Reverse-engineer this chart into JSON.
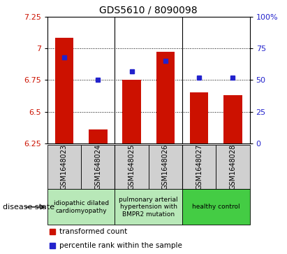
{
  "title": "GDS5610 / 8090098",
  "samples": [
    "GSM1648023",
    "GSM1648024",
    "GSM1648025",
    "GSM1648026",
    "GSM1648027",
    "GSM1648028"
  ],
  "bar_values": [
    7.08,
    6.36,
    6.75,
    6.97,
    6.65,
    6.63
  ],
  "percentile_values": [
    68,
    50,
    57,
    65,
    52,
    52
  ],
  "bar_color": "#cc1100",
  "dot_color": "#2222cc",
  "ylim_left": [
    6.25,
    7.25
  ],
  "ylim_right": [
    0,
    100
  ],
  "yticks_left": [
    6.25,
    6.5,
    6.75,
    7.0,
    7.25
  ],
  "ytick_labels_left": [
    "6.25",
    "6.5",
    "6.75",
    "7",
    "7.25"
  ],
  "yticks_right": [
    0,
    25,
    50,
    75,
    100
  ],
  "ytick_labels_right": [
    "0",
    "25",
    "50",
    "75",
    "100%"
  ],
  "grid_values": [
    6.5,
    6.75,
    7.0
  ],
  "disease_groups": [
    {
      "label": "idiopathic dilated\ncardiomyopathy",
      "x_range": [
        -0.5,
        1.5
      ],
      "color": "#b8e8b8"
    },
    {
      "label": "pulmonary arterial\nhypertension with\nBMPR2 mutation",
      "x_range": [
        1.5,
        3.5
      ],
      "color": "#b8e8b8"
    },
    {
      "label": "healthy control",
      "x_range": [
        3.5,
        5.5
      ],
      "color": "#44cc44"
    }
  ],
  "sample_box_color": "#d0d0d0",
  "legend_items": [
    {
      "label": "transformed count",
      "color": "#cc1100"
    },
    {
      "label": "percentile rank within the sample",
      "color": "#2222cc"
    }
  ],
  "disease_state_label": "disease state",
  "bar_bottom": 6.25,
  "group_separators": [
    1.5,
    3.5
  ]
}
